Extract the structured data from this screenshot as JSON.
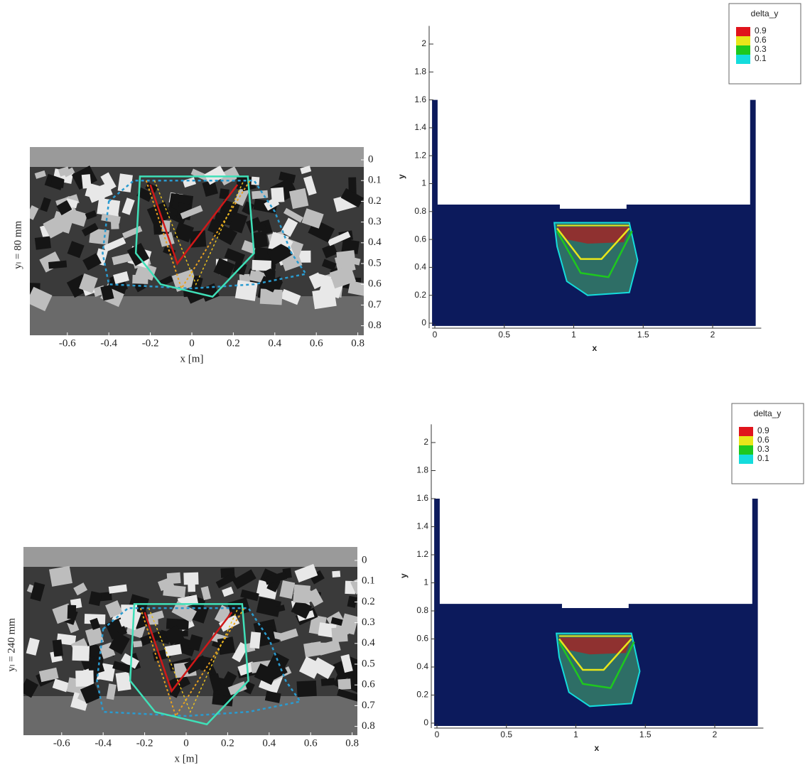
{
  "panels": [
    {
      "photo": {
        "label": "yₗ = 80 mm",
        "xlabel": "x [m]",
        "xticks": [
          -0.6,
          -0.4,
          -0.2,
          0,
          0.2,
          0.4,
          0.6,
          0.8
        ],
        "yticks": [
          0,
          0.1,
          0.2,
          0.3,
          0.4,
          0.5,
          0.6,
          0.7,
          0.8
        ]
      },
      "sim": {
        "xlabel": "x",
        "ylabel": "y",
        "xticks": [
          0,
          0.5,
          1,
          1.5,
          2
        ],
        "yticks": [
          0,
          0.2,
          0.4,
          0.6,
          0.8,
          1,
          1.2,
          1.4,
          1.6,
          1.8,
          2
        ],
        "legend": {
          "title": "delta_y",
          "levels": [
            {
              "value": 0.9,
              "color": "#e0141c"
            },
            {
              "value": 0.6,
              "color": "#e8e61a"
            },
            {
              "value": 0.3,
              "color": "#1ec81e"
            },
            {
              "value": 0.1,
              "color": "#14dcdc"
            }
          ]
        }
      }
    },
    {
      "photo": {
        "label": "yₗ = 240 mm",
        "xlabel": "x [m]",
        "xticks": [
          -0.6,
          -0.4,
          -0.2,
          0,
          0.2,
          0.4,
          0.6,
          0.8
        ],
        "yticks": [
          0,
          0.1,
          0.2,
          0.3,
          0.4,
          0.5,
          0.6,
          0.7,
          0.8
        ]
      },
      "sim": {
        "xlabel": "x",
        "ylabel": "y",
        "xticks": [
          0,
          0.5,
          1,
          1.5,
          2
        ],
        "yticks": [
          0,
          0.2,
          0.4,
          0.6,
          0.8,
          1,
          1.2,
          1.4,
          1.6,
          1.8,
          2
        ],
        "legend": {
          "title": "delta_y",
          "levels": [
            {
              "value": 0.9,
              "color": "#e0141c"
            },
            {
              "value": 0.6,
              "color": "#e8e61a"
            },
            {
              "value": 0.3,
              "color": "#1ec81e"
            },
            {
              "value": 0.1,
              "color": "#14dcdc"
            }
          ]
        }
      }
    }
  ]
}
